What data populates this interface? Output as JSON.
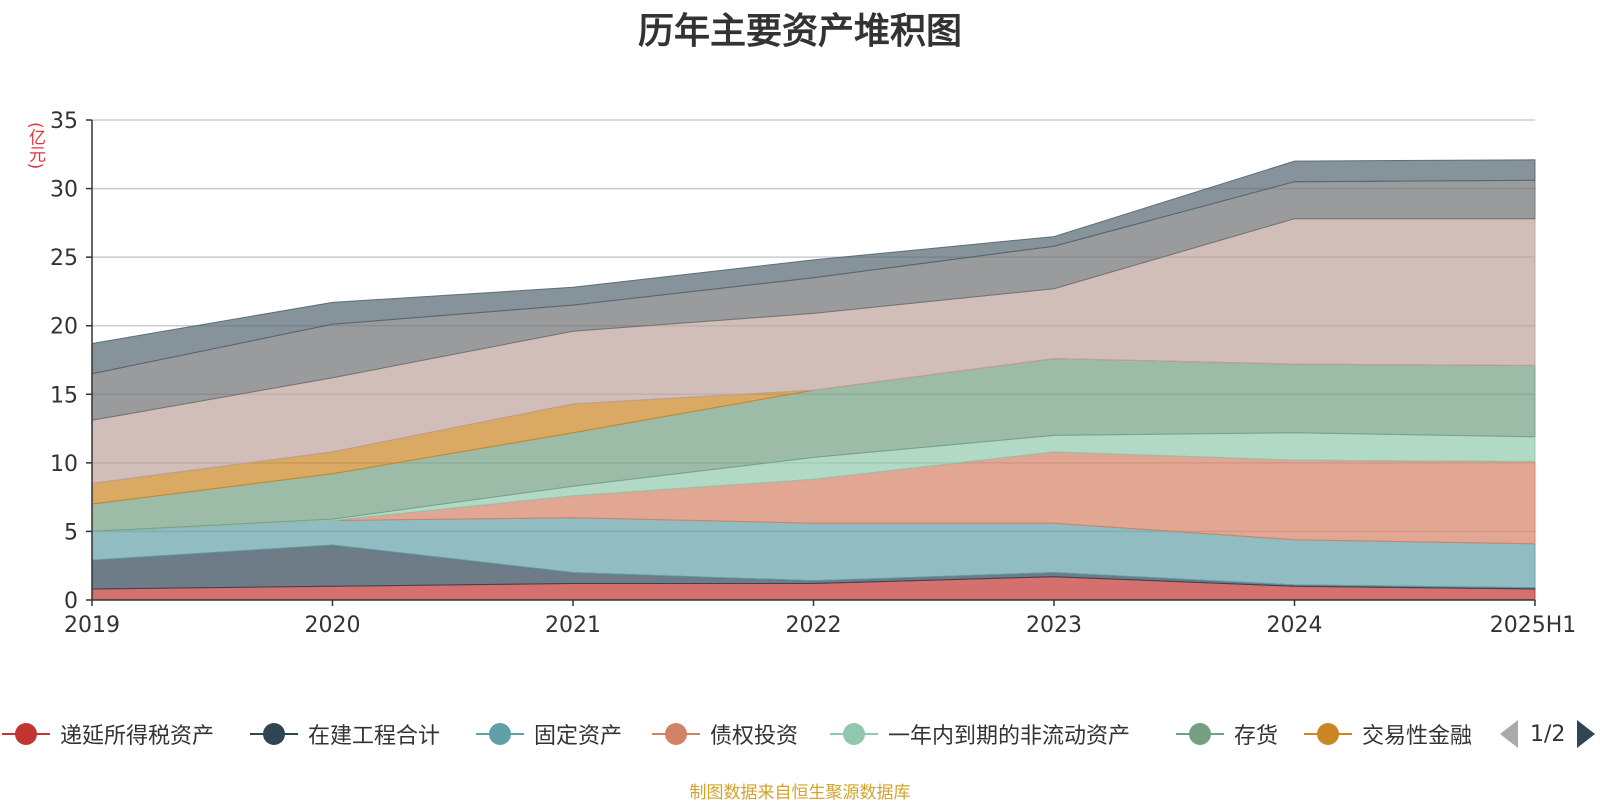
{
  "chart_data": {
    "type": "area",
    "stacked": true,
    "title": "历年主要资产堆积图",
    "unit": "(亿元)",
    "categories": [
      "2019",
      "2020",
      "2021",
      "2022",
      "2023",
      "2024",
      "2025H1"
    ],
    "ylim": [
      0,
      35
    ],
    "yticks": [
      0,
      5,
      10,
      15,
      20,
      25,
      30,
      35
    ],
    "grid": true,
    "legend_position": "bottom",
    "series": [
      {
        "name": "递延所得税资产",
        "color": "#c23531",
        "values": [
          0.8,
          1.0,
          1.2,
          1.2,
          1.7,
          1.0,
          0.8
        ]
      },
      {
        "name": "在建工程合计",
        "color": "#2f4554",
        "values": [
          2.1,
          3.0,
          0.8,
          0.2,
          0.3,
          0.1,
          0.1
        ]
      },
      {
        "name": "固定资产",
        "color": "#61a0a8",
        "values": [
          2.1,
          1.8,
          4.0,
          4.2,
          3.6,
          3.3,
          3.2
        ]
      },
      {
        "name": "债权投资",
        "color": "#d48265",
        "values": [
          0.0,
          0.0,
          1.6,
          3.2,
          5.2,
          5.8,
          6.0
        ]
      },
      {
        "name": "一年内到期的非流动资产",
        "color": "#91c7ae",
        "values": [
          0.0,
          0.1,
          0.7,
          1.6,
          1.2,
          2.0,
          1.8
        ]
      },
      {
        "name": "存货",
        "color": "#749f83",
        "values": [
          2.0,
          3.3,
          3.9,
          4.9,
          5.6,
          5.0,
          5.2
        ]
      },
      {
        "name": "交易性金融",
        "color": "#ca8622",
        "values": [
          1.5,
          1.6,
          2.1,
          0.0,
          0.0,
          0.0,
          0.0
        ]
      },
      {
        "name": "",
        "color": "#bda29a",
        "values": [
          4.6,
          5.4,
          5.3,
          5.6,
          5.1,
          10.6,
          10.7
        ]
      },
      {
        "name": "",
        "color": "#6e7074",
        "values": [
          3.4,
          3.9,
          1.9,
          2.6,
          3.1,
          2.7,
          2.8
        ]
      },
      {
        "name": "",
        "color": "#546570",
        "values": [
          2.2,
          1.6,
          1.3,
          1.3,
          0.7,
          1.5,
          1.5
        ]
      }
    ]
  },
  "legend": {
    "page_text": "1/2"
  },
  "source_note": "制图数据来自恒生聚源数据库"
}
